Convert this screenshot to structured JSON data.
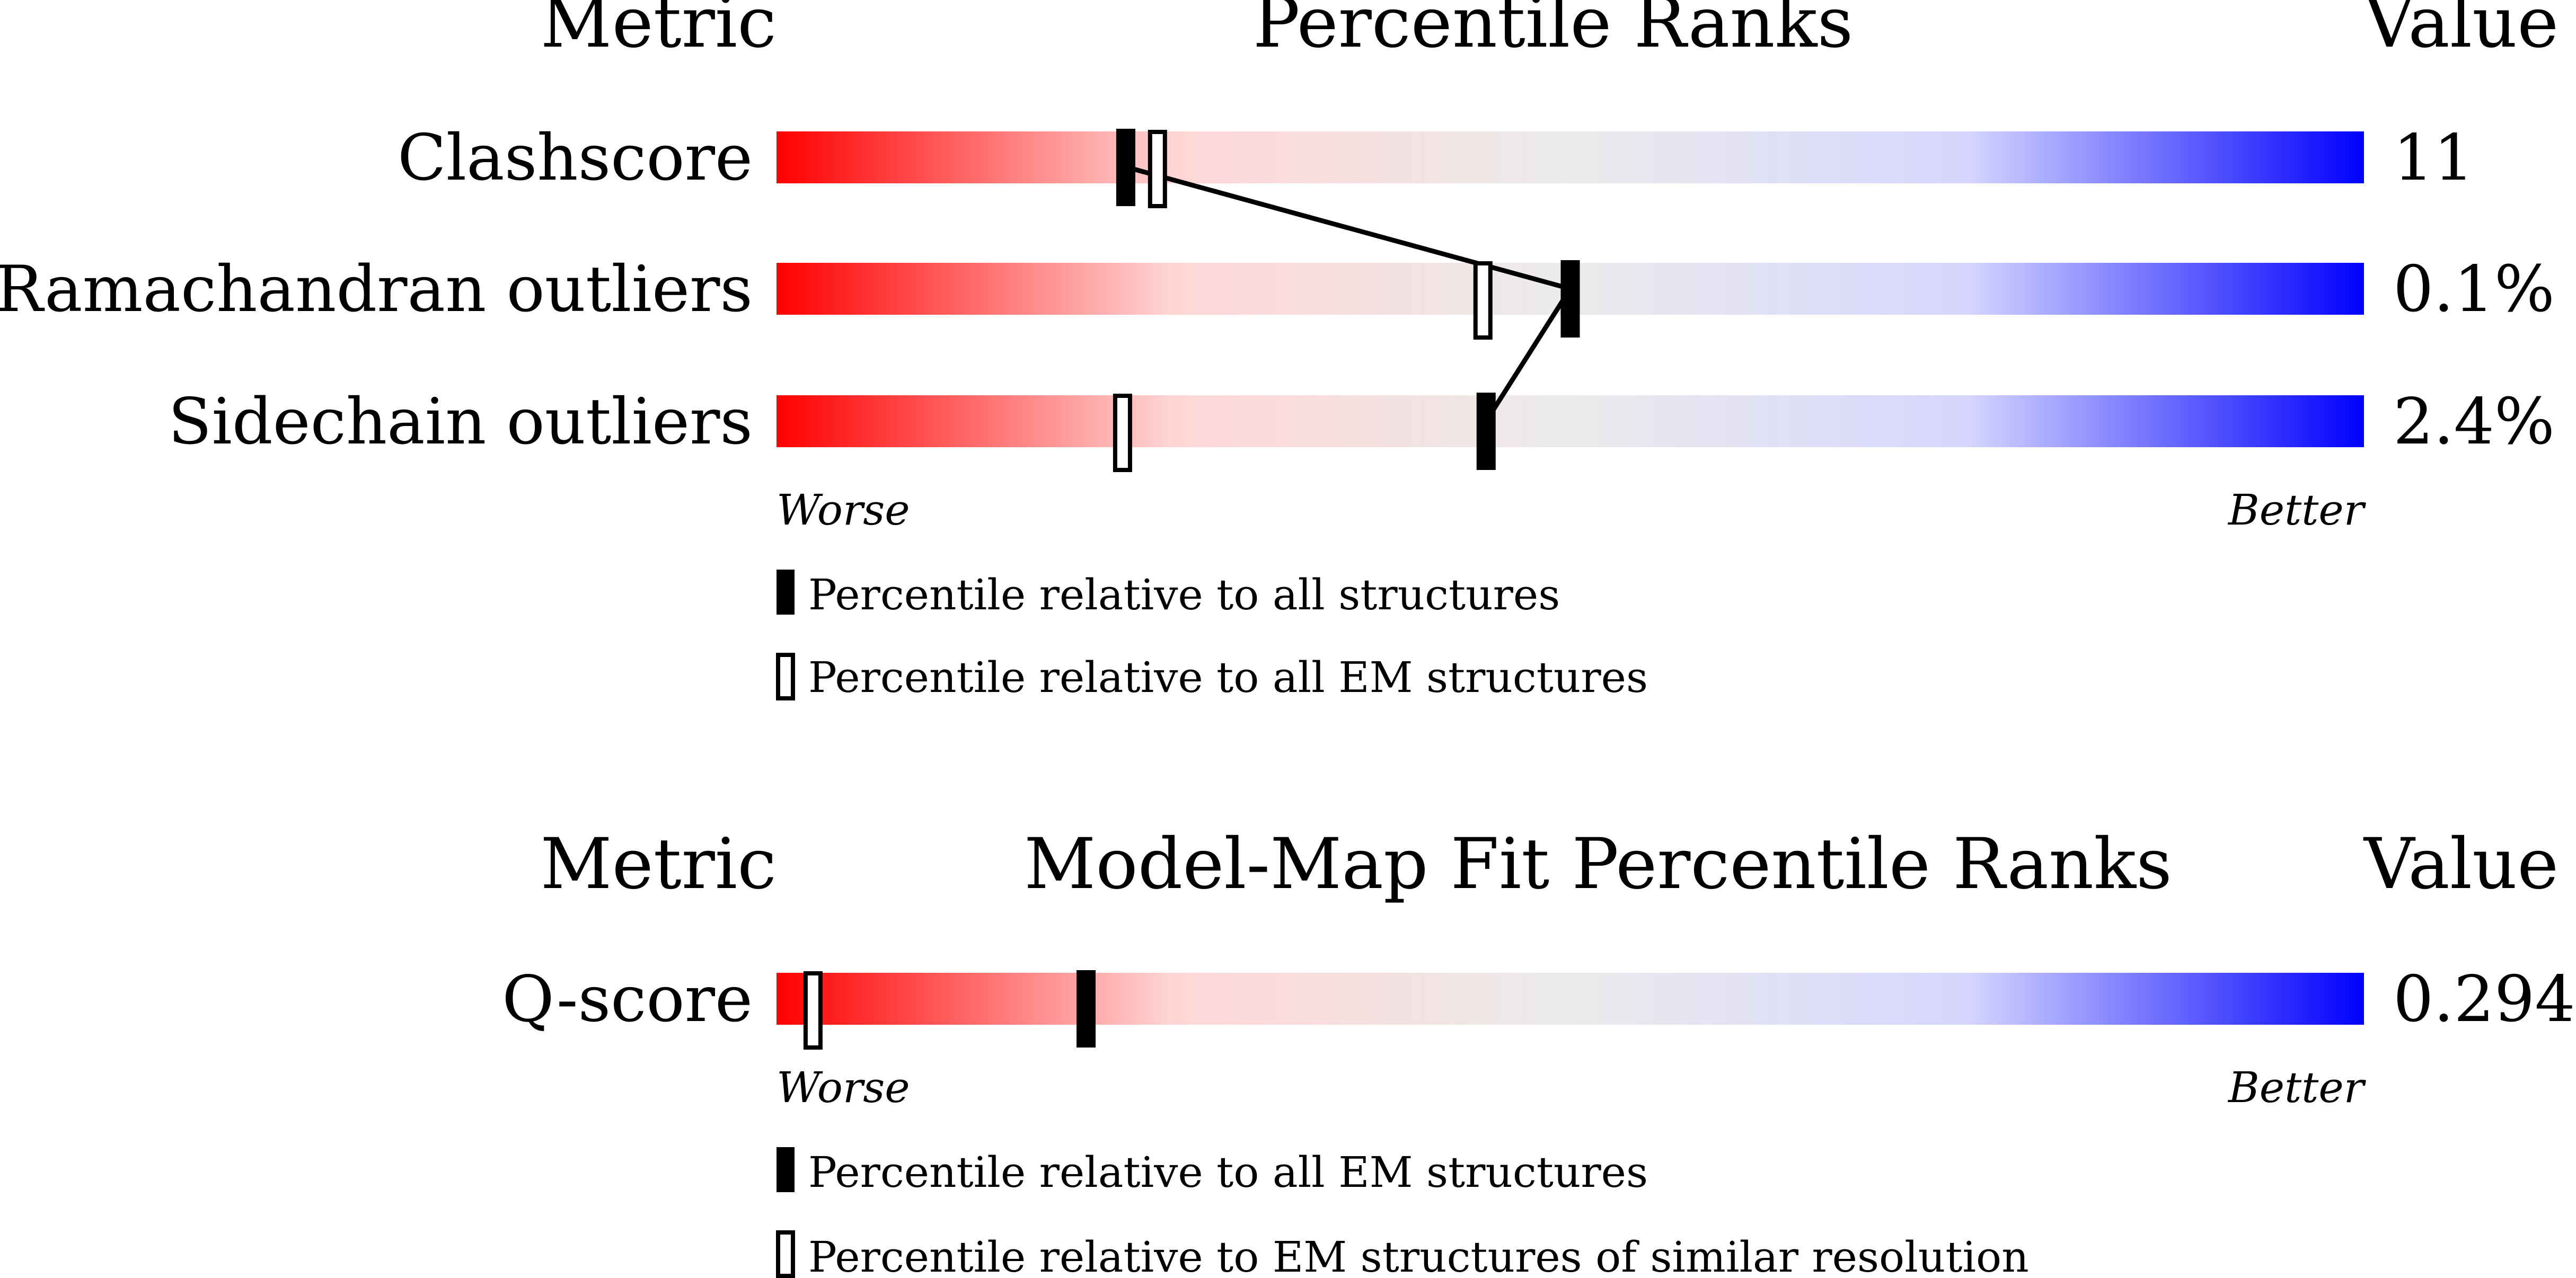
{
  "gradient": {
    "colors": [
      "#ff0000",
      "#ffd6d6",
      "#ebebeb",
      "#d6d6ff",
      "#0000ff"
    ]
  },
  "chart_data": [
    {
      "type": "percentile-rank",
      "headers": {
        "metric": "Metric",
        "title": "Percentile Ranks",
        "value": "Value"
      },
      "axis_labels": {
        "worse": "Worse",
        "better": "Better"
      },
      "xlim": [
        0,
        100
      ],
      "rows": [
        {
          "metric": "Clashscore",
          "value": "11",
          "all_percentile": 22,
          "em_percentile": 24
        },
        {
          "metric": "Ramachandran outliers",
          "value": "0.1%",
          "all_percentile": 50,
          "em_percentile": 44.5
        },
        {
          "metric": "Sidechain outliers",
          "value": "2.4%",
          "all_percentile": 44.7,
          "em_percentile": 21.8
        }
      ],
      "legend": [
        {
          "marker": "filled",
          "label": "Percentile relative to all structures"
        },
        {
          "marker": "open",
          "label": "Percentile relative to all EM structures"
        }
      ]
    },
    {
      "type": "percentile-rank",
      "headers": {
        "metric": "Metric",
        "title": "Model-Map Fit Percentile Ranks",
        "value": "Value"
      },
      "axis_labels": {
        "worse": "Worse",
        "better": "Better"
      },
      "xlim": [
        0,
        100
      ],
      "rows": [
        {
          "metric": "Q-score",
          "value": "0.294",
          "all_percentile": 19.5,
          "em_percentile": 2.3
        }
      ],
      "legend": [
        {
          "marker": "filled",
          "label": "Percentile relative to all EM structures"
        },
        {
          "marker": "open",
          "label": "Percentile relative to EM structures of similar resolution"
        }
      ]
    }
  ]
}
